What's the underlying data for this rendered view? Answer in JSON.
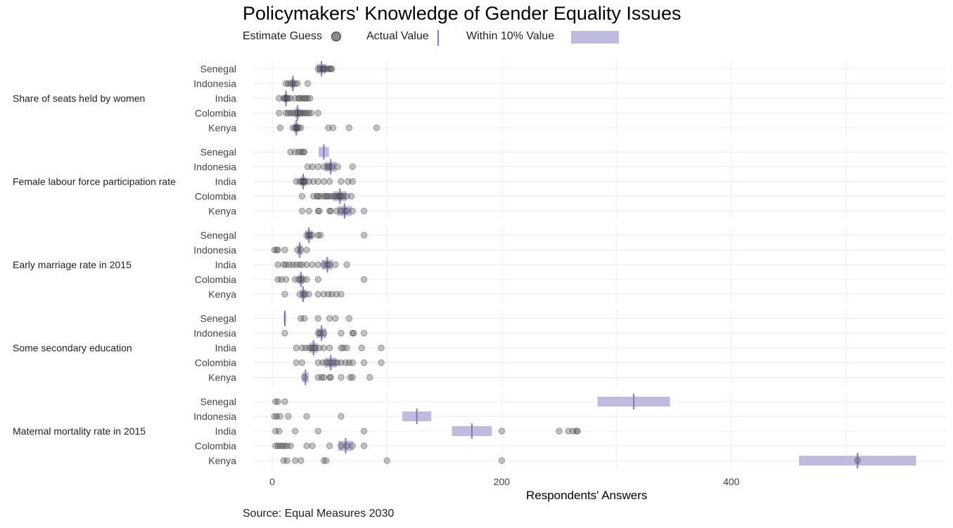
{
  "title": "Policymakers' Knowledge of Gender Equality Issues",
  "legend": {
    "estimate_label": "Estimate Guess",
    "actual_label": "Actual Value",
    "within_label": "Within 10% Value"
  },
  "source": "Source: Equal Measures 2030",
  "colors": {
    "band": "#bdbcdf",
    "actual_line": "#7c78c4",
    "point_fill": "#555555",
    "point_stroke": "#222222",
    "grid": "#ebebeb"
  },
  "chart_data": {
    "type": "scatter",
    "title": "Policymakers' Knowledge of Gender Equality Issues",
    "xlabel": "Respondents' Answers",
    "ylabel": "",
    "xlim": [
      -25,
      590
    ],
    "xticks": [
      0,
      200,
      400
    ],
    "grid": true,
    "legend_position": "top",
    "groups": [
      {
        "name": "Share of seats held by women",
        "rows": [
          {
            "country": "Senegal",
            "actual": 43,
            "points": [
              40,
              42,
              44,
              45,
              46,
              48,
              50,
              51,
              52
            ]
          },
          {
            "country": "Indonesia",
            "actual": 18,
            "points": [
              12,
              14,
              16,
              18,
              20,
              22,
              31
            ]
          },
          {
            "country": "India",
            "actual": 12,
            "points": [
              6,
              10,
              11,
              12,
              13,
              14,
              16,
              20,
              23,
              24,
              26,
              28,
              29,
              31,
              33
            ]
          },
          {
            "country": "Colombia",
            "actual": 22,
            "points": [
              6,
              12,
              14,
              16,
              18,
              20,
              22,
              24,
              25,
              27,
              28,
              30,
              32,
              34,
              40
            ]
          },
          {
            "country": "Kenya",
            "actual": 21,
            "points": [
              7,
              18,
              20,
              21,
              22,
              23,
              25,
              49,
              53,
              67,
              91
            ]
          }
        ]
      },
      {
        "name": "Female labour force participation rate",
        "rows": [
          {
            "country": "Senegal",
            "actual": 45,
            "points": [
              16,
              20,
              23,
              25,
              27,
              28
            ]
          },
          {
            "country": "Indonesia",
            "actual": 51,
            "points": [
              31,
              35,
              40,
              45,
              48,
              50,
              52,
              57,
              70
            ]
          },
          {
            "country": "India",
            "actual": 27,
            "points": [
              21,
              24,
              26,
              27,
              28,
              29,
              32,
              36,
              40,
              45,
              50,
              60,
              66,
              70
            ]
          },
          {
            "country": "Colombia",
            "actual": 59,
            "points": [
              26,
              36,
              39,
              40,
              42,
              45,
              47,
              48,
              50,
              52,
              54,
              56,
              58,
              59,
              60,
              62,
              65,
              69
            ]
          },
          {
            "country": "Kenya",
            "actual": 63,
            "points": [
              26,
              32,
              40,
              41,
              50,
              51,
              56,
              60,
              63,
              65,
              70,
              80
            ]
          }
        ]
      },
      {
        "name": "Early marriage rate in 2015",
        "rows": [
          {
            "country": "Senegal",
            "actual": 32,
            "points": [
              30,
              32,
              33,
              35,
              40,
              42,
              80
            ]
          },
          {
            "country": "Indonesia",
            "actual": 24,
            "points": [
              2,
              4,
              5,
              11,
              22,
              25,
              30
            ]
          },
          {
            "country": "India",
            "actual": 48,
            "points": [
              5,
              10,
              12,
              15,
              18,
              21,
              24,
              26,
              30,
              35,
              40,
              45,
              48,
              50,
              55,
              65
            ]
          },
          {
            "country": "Colombia",
            "actual": 25,
            "points": [
              5,
              8,
              12,
              20,
              23,
              25,
              27,
              30,
              40,
              80
            ]
          },
          {
            "country": "Kenya",
            "actual": 27,
            "points": [
              11,
              24,
              27,
              29,
              32,
              40,
              45,
              49,
              52,
              56,
              60
            ]
          }
        ]
      },
      {
        "name": "Some secondary education",
        "rows": [
          {
            "country": "Senegal",
            "actual": 11,
            "points": [
              25,
              28,
              40,
              50,
              55,
              67
            ]
          },
          {
            "country": "Indonesia",
            "actual": 43,
            "points": [
              11,
              40,
              42,
              45,
              60,
              70,
              71,
              80
            ]
          },
          {
            "country": "India",
            "actual": 36,
            "points": [
              21,
              26,
              29,
              32,
              34,
              36,
              38,
              41,
              45,
              50,
              60,
              62,
              65,
              78,
              95
            ]
          },
          {
            "country": "Colombia",
            "actual": 51,
            "points": [
              21,
              26,
              40,
              44,
              47,
              50,
              52,
              55,
              57,
              60,
              64,
              67,
              70,
              80,
              95
            ]
          },
          {
            "country": "Kenya",
            "actual": 29,
            "points": [
              28,
              40,
              43,
              45,
              50,
              51,
              60,
              68,
              70,
              85
            ]
          }
        ]
      },
      {
        "name": "Maternal mortality rate in 2015",
        "rows": [
          {
            "country": "Senegal",
            "actual": 315,
            "points": [
              3,
              5,
              11
            ]
          },
          {
            "country": "Indonesia",
            "actual": 126,
            "points": [
              2,
              4,
              7,
              14,
              30,
              60
            ]
          },
          {
            "country": "India",
            "actual": 174,
            "points": [
              3,
              6,
              20,
              40,
              80,
              200,
              250,
              258,
              262,
              265,
              266
            ]
          },
          {
            "country": "Colombia",
            "actual": 64,
            "points": [
              3,
              5,
              7,
              9,
              11,
              13,
              16,
              30,
              35,
              50,
              60,
              65,
              70,
              80
            ]
          },
          {
            "country": "Kenya",
            "actual": 510,
            "points": [
              10,
              13,
              20,
              25,
              45,
              47,
              100,
              200,
              510
            ]
          }
        ]
      }
    ]
  }
}
